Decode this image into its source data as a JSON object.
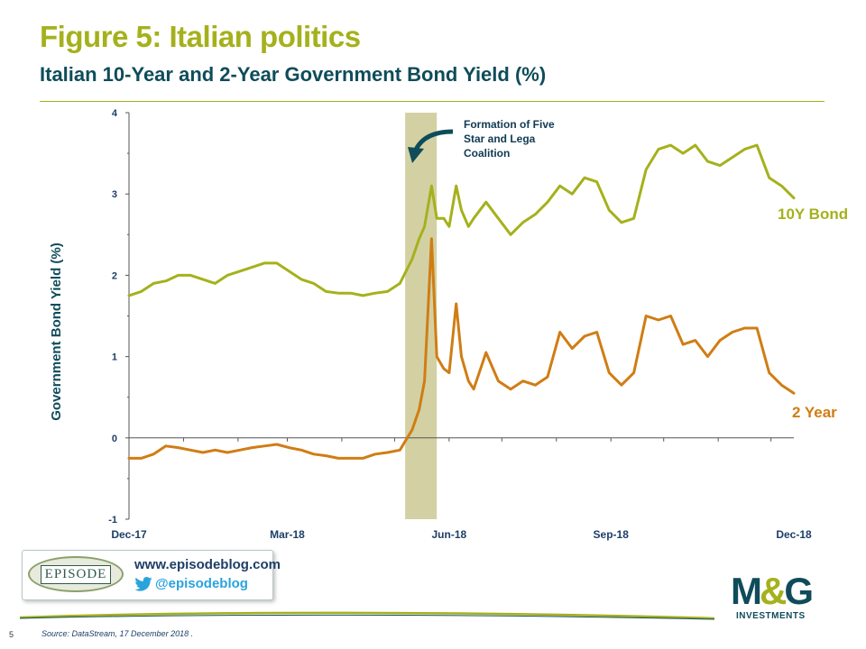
{
  "header": {
    "title": "Figure 5: Italian politics",
    "subtitle": "Italian 10-Year and 2-Year Government Bond Yield (%)"
  },
  "colors": {
    "accent_green": "#a5b11c",
    "navy": "#0f4c5a",
    "ten_year": "#a5b11c",
    "two_year": "#d07d14",
    "event_band": "#d3d1a4"
  },
  "chart_data": {
    "type": "line",
    "ylabel": "Government Bond Yield (%)",
    "xlabel": "",
    "ylim": [
      -1,
      4
    ],
    "y_ticks": [
      "4",
      "3",
      "2",
      "1",
      "0",
      "-1"
    ],
    "x_ticks": [
      "Dec-17",
      "Mar-18",
      "Jun-18",
      "Sep-18",
      "Dec-18"
    ],
    "x_range": [
      "2017-12-01",
      "2018-12-14"
    ],
    "grid": false,
    "series_end_labels": true,
    "annotation": {
      "text_lines": [
        "Formation of Five",
        "Star and Lega",
        "Coalition"
      ],
      "band_start": "2018-05-07",
      "band_end": "2018-05-25"
    },
    "series": [
      {
        "name": "10Y Bond",
        "color": "#a5b11c",
        "x": [
          "2017-12-01",
          "2017-12-08",
          "2017-12-15",
          "2017-12-22",
          "2017-12-29",
          "2018-01-05",
          "2018-01-12",
          "2018-01-19",
          "2018-01-26",
          "2018-02-02",
          "2018-02-09",
          "2018-02-16",
          "2018-02-23",
          "2018-03-02",
          "2018-03-09",
          "2018-03-16",
          "2018-03-23",
          "2018-03-30",
          "2018-04-06",
          "2018-04-13",
          "2018-04-20",
          "2018-04-27",
          "2018-05-04",
          "2018-05-11",
          "2018-05-15",
          "2018-05-18",
          "2018-05-22",
          "2018-05-25",
          "2018-05-29",
          "2018-06-01",
          "2018-06-05",
          "2018-06-08",
          "2018-06-12",
          "2018-06-15",
          "2018-06-22",
          "2018-06-29",
          "2018-07-06",
          "2018-07-13",
          "2018-07-20",
          "2018-07-27",
          "2018-08-03",
          "2018-08-10",
          "2018-08-17",
          "2018-08-24",
          "2018-08-31",
          "2018-09-07",
          "2018-09-14",
          "2018-09-21",
          "2018-09-28",
          "2018-10-05",
          "2018-10-12",
          "2018-10-19",
          "2018-10-26",
          "2018-11-02",
          "2018-11-09",
          "2018-11-16",
          "2018-11-23",
          "2018-11-30",
          "2018-12-07",
          "2018-12-14"
        ],
        "values": [
          1.75,
          1.8,
          1.9,
          1.93,
          2.0,
          2.0,
          1.95,
          1.9,
          2.0,
          2.05,
          2.1,
          2.15,
          2.15,
          2.05,
          1.95,
          1.9,
          1.8,
          1.78,
          1.78,
          1.75,
          1.78,
          1.8,
          1.9,
          2.2,
          2.45,
          2.6,
          3.1,
          2.7,
          2.7,
          2.6,
          3.1,
          2.8,
          2.6,
          2.7,
          2.9,
          2.7,
          2.5,
          2.65,
          2.75,
          2.9,
          3.1,
          3.0,
          3.2,
          3.15,
          2.8,
          2.65,
          2.7,
          3.3,
          3.55,
          3.6,
          3.5,
          3.6,
          3.4,
          3.35,
          3.45,
          3.55,
          3.6,
          3.2,
          3.1,
          2.95
        ]
      },
      {
        "name": "2 Year",
        "color": "#d07d14",
        "x": [
          "2017-12-01",
          "2017-12-08",
          "2017-12-15",
          "2017-12-22",
          "2017-12-29",
          "2018-01-05",
          "2018-01-12",
          "2018-01-19",
          "2018-01-26",
          "2018-02-02",
          "2018-02-09",
          "2018-02-16",
          "2018-02-23",
          "2018-03-02",
          "2018-03-09",
          "2018-03-16",
          "2018-03-23",
          "2018-03-30",
          "2018-04-06",
          "2018-04-13",
          "2018-04-20",
          "2018-04-27",
          "2018-05-04",
          "2018-05-11",
          "2018-05-15",
          "2018-05-18",
          "2018-05-22",
          "2018-05-25",
          "2018-05-29",
          "2018-06-01",
          "2018-06-05",
          "2018-06-08",
          "2018-06-12",
          "2018-06-15",
          "2018-06-22",
          "2018-06-29",
          "2018-07-06",
          "2018-07-13",
          "2018-07-20",
          "2018-07-27",
          "2018-08-03",
          "2018-08-10",
          "2018-08-17",
          "2018-08-24",
          "2018-08-31",
          "2018-09-07",
          "2018-09-14",
          "2018-09-21",
          "2018-09-28",
          "2018-10-05",
          "2018-10-12",
          "2018-10-19",
          "2018-10-26",
          "2018-11-02",
          "2018-11-09",
          "2018-11-16",
          "2018-11-23",
          "2018-11-30",
          "2018-12-07",
          "2018-12-14"
        ],
        "values": [
          -0.25,
          -0.25,
          -0.2,
          -0.1,
          -0.12,
          -0.15,
          -0.18,
          -0.15,
          -0.18,
          -0.15,
          -0.12,
          -0.1,
          -0.08,
          -0.12,
          -0.15,
          -0.2,
          -0.22,
          -0.25,
          -0.25,
          -0.25,
          -0.2,
          -0.18,
          -0.15,
          0.1,
          0.35,
          0.7,
          2.45,
          1.0,
          0.85,
          0.8,
          1.65,
          1.0,
          0.7,
          0.6,
          1.05,
          0.7,
          0.6,
          0.7,
          0.65,
          0.75,
          1.3,
          1.1,
          1.25,
          1.3,
          0.8,
          0.65,
          0.8,
          1.5,
          1.45,
          1.5,
          1.15,
          1.2,
          1.0,
          1.2,
          1.3,
          1.35,
          1.35,
          0.8,
          0.65,
          0.55
        ]
      }
    ]
  },
  "branding": {
    "blog_logo_text": "EPISODE",
    "blog_url": "www.episodeblog.com",
    "twitter_handle": "@episodeblog",
    "company_mark_left": "M",
    "company_mark_amp": "&",
    "company_mark_right": "G",
    "company_name": "INVESTMENTS"
  },
  "footer": {
    "page_number": "5",
    "source": "Source: DataStream, 17 December 2018 ."
  }
}
